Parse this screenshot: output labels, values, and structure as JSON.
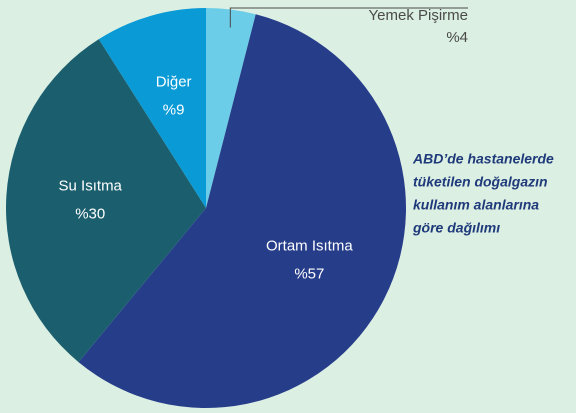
{
  "chart_data": {
    "type": "pie",
    "title": [
      "ABD’de hastanelerde",
      "tüketilen doğalgazın",
      "kullanım alanlarına",
      "göre dağılımı"
    ],
    "categories": [
      "Yemek Pişirme",
      "Ortam Isıtma",
      "Su Isıtma",
      "Diğer"
    ],
    "values": [
      4,
      57,
      30,
      9
    ],
    "value_labels": [
      "%4",
      "%57",
      "%30",
      "%9"
    ],
    "colors": [
      "#6ccde8",
      "#263d8a",
      "#1b5f6e",
      "#0a9ad6"
    ]
  }
}
